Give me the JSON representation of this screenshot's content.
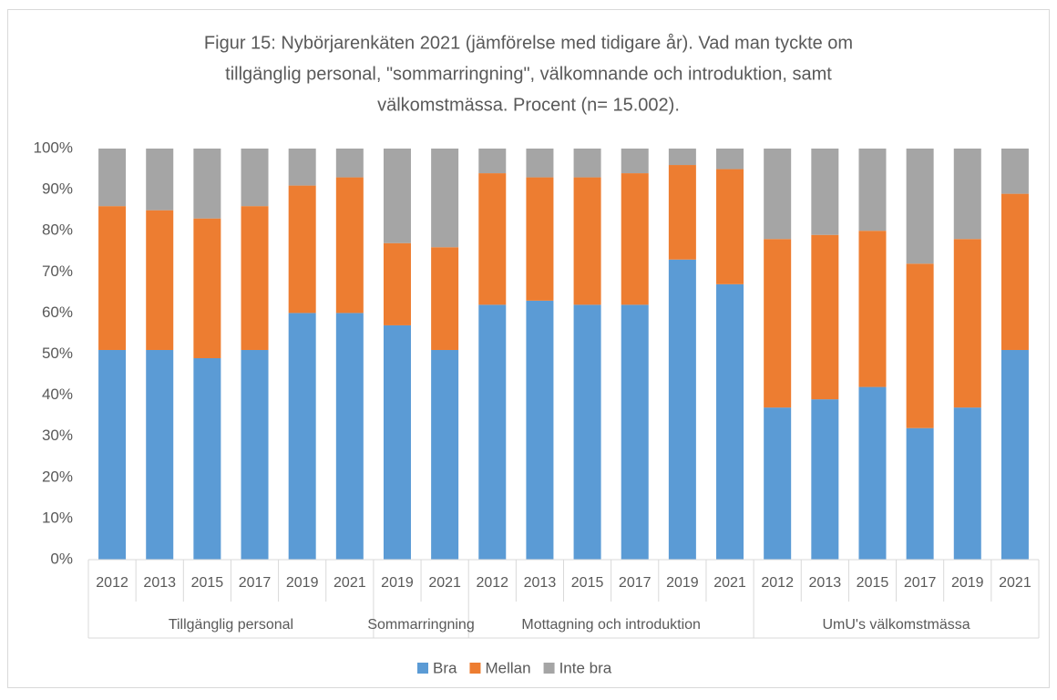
{
  "chart_data": {
    "type": "stacked-bar",
    "title": [
      "Figur 15: Nybörjarenkäten 2021 (jämförelse med tidigare år). Vad man tyckte om",
      "tillgänglig personal, \"sommarringning\", välkomnande och introduktion, samt",
      "välkomstmässa. Procent (n= 15.002)."
    ],
    "groups": [
      {
        "name": "Tillgänglig personal",
        "categories": [
          "2012",
          "2013",
          "2015",
          "2017",
          "2019",
          "2021"
        ]
      },
      {
        "name": "Sommarringning",
        "categories": [
          "2019",
          "2021"
        ]
      },
      {
        "name": "Mottagning och introduktion",
        "categories": [
          "2012",
          "2013",
          "2015",
          "2017",
          "2019",
          "2021"
        ]
      },
      {
        "name": "UmU's välkomstmässa",
        "categories": [
          "2012",
          "2013",
          "2015",
          "2017",
          "2019",
          "2021"
        ]
      }
    ],
    "series": [
      {
        "name": "Bra",
        "color": "#5b9bd5",
        "values": [
          51,
          51,
          49,
          51,
          60,
          60,
          57,
          51,
          62,
          63,
          62,
          62,
          73,
          67,
          37,
          39,
          42,
          32,
          37,
          51
        ]
      },
      {
        "name": "Mellan",
        "color": "#ed7d31",
        "values": [
          35,
          34,
          34,
          35,
          31,
          33,
          20,
          25,
          32,
          30,
          31,
          32,
          23,
          28,
          41,
          40,
          38,
          40,
          41,
          38
        ]
      },
      {
        "name": "Inte bra",
        "color": "#a5a5a5",
        "values": [
          14,
          15,
          17,
          14,
          9,
          7,
          23,
          24,
          6,
          7,
          7,
          6,
          4,
          5,
          22,
          21,
          20,
          28,
          22,
          11
        ]
      }
    ],
    "ylim": [
      0,
      100
    ],
    "yticks": [
      {
        "value": 0,
        "label": "0%"
      },
      {
        "value": 10,
        "label": "10%"
      },
      {
        "value": 20,
        "label": "20%"
      },
      {
        "value": 30,
        "label": "30%"
      },
      {
        "value": 40,
        "label": "40%"
      },
      {
        "value": 50,
        "label": "50%"
      },
      {
        "value": 60,
        "label": "60%"
      },
      {
        "value": 70,
        "label": "70%"
      },
      {
        "value": 80,
        "label": "80%"
      },
      {
        "value": 90,
        "label": "90%"
      },
      {
        "value": 100,
        "label": "100%"
      }
    ],
    "legend": "bottom"
  }
}
